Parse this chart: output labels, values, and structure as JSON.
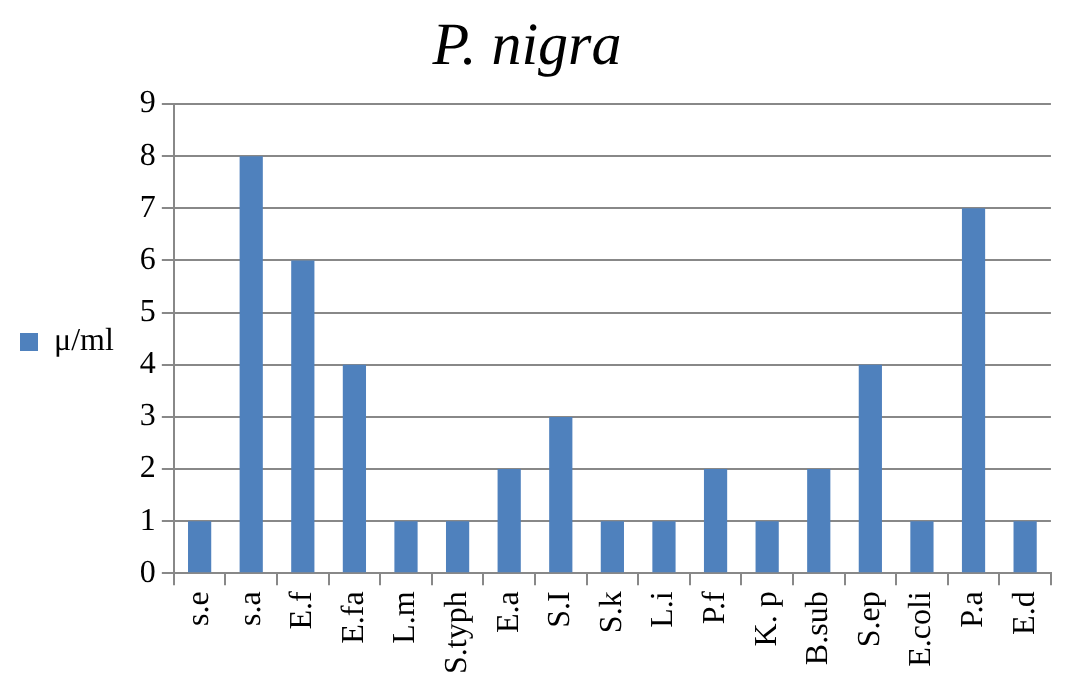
{
  "chart_data": {
    "type": "bar",
    "title": "P. nigra",
    "categories": [
      "s.e",
      "s.a",
      "E.f",
      "E.fa",
      "L.m",
      "S.typh",
      "E.a",
      "S.I",
      "S.k",
      "L.i",
      "P.f",
      "K. p",
      "B.sub",
      "S.ep",
      "E.coli",
      "P.a",
      "E.d"
    ],
    "series": [
      {
        "name": "μ/ml",
        "color": "#4f81bd",
        "values": [
          1,
          8,
          6,
          4,
          1,
          1,
          2,
          3,
          1,
          1,
          2,
          1,
          2,
          4,
          1,
          7,
          1
        ]
      }
    ],
    "ylim": [
      0,
      9
    ],
    "yticks": [
      0,
      1,
      2,
      3,
      4,
      5,
      6,
      7,
      8,
      9
    ],
    "grid": "y",
    "legend": "left"
  }
}
